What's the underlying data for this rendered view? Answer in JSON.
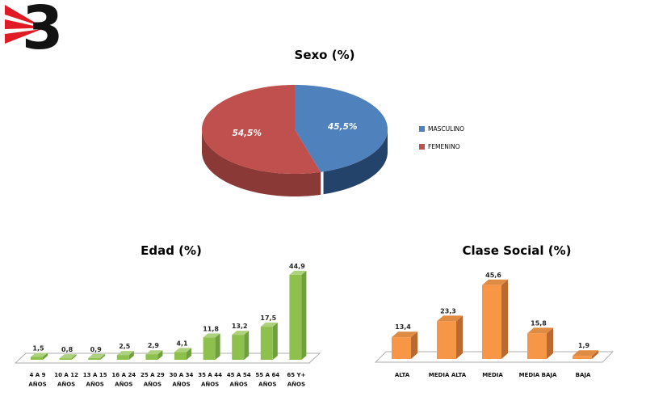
{
  "page": {
    "background": "#FFFFFF"
  },
  "logo": {
    "name": "TV3",
    "symbol_text": "3",
    "stripe_color": "#E01B26",
    "symbol_color": "#121212"
  },
  "number_format": {
    "decimal_separator": ","
  },
  "chart_data": [
    {
      "id": "sexo",
      "type": "pie",
      "effect": "3d",
      "title": "Sexo (%)",
      "labels": [
        "MASCULINO",
        "FEMENINO"
      ],
      "values": [
        45.5,
        54.5
      ],
      "data_labels": [
        "45,5%",
        "54,5%"
      ],
      "colors": [
        "#4F81BD",
        "#C0504D"
      ],
      "side_colors": [
        "#24436B",
        "#8A3936"
      ],
      "data_label_color": "#FFFFFF",
      "legend_position": "right"
    },
    {
      "id": "edad",
      "type": "bar",
      "effect": "3d",
      "title": "Edad (%)",
      "categories": [
        "4 A 9\nAÑOS",
        "10 A 12\nAÑOS",
        "13 A 15\nAÑOS",
        "16 A 24\nAÑOS",
        "25 A 29\nAÑOS",
        "30 A 34\nAÑOS",
        "35 A 44\nAÑOS",
        "45 A 54\nAÑOS",
        "55 A 64\nAÑOS",
        "65 Y+\nAÑOS"
      ],
      "values": [
        1.5,
        0.8,
        0.9,
        2.5,
        2.9,
        4.1,
        11.8,
        13.2,
        17.5,
        44.9
      ],
      "data_labels": [
        "1,5",
        "0,8",
        "0,9",
        "2,5",
        "2,9",
        "4,1",
        "11,8",
        "13,2",
        "17,5",
        "44,9"
      ],
      "bar_colors": {
        "front": "#8EC04E",
        "top": "#AED17D",
        "side": "#6FA03C"
      },
      "value_label_color": "#262626",
      "category_label_color": "#111111",
      "axis_color": "#ABABAB",
      "ylim": [
        0,
        50
      ],
      "grid": false
    },
    {
      "id": "clase",
      "type": "bar",
      "effect": "3d",
      "title": "Clase Social (%)",
      "categories": [
        "ALTA",
        "MEDIA ALTA",
        "MEDIA",
        "MEDIA BAJA",
        "BAJA"
      ],
      "values": [
        13.4,
        23.3,
        45.6,
        15.8,
        1.9
      ],
      "data_labels": [
        "13,4",
        "23,3",
        "45,6",
        "15,8",
        "1,9"
      ],
      "bar_colors": {
        "front": "#F79646",
        "top": "#E08B44",
        "side": "#BA6931"
      },
      "value_label_color": "#262626",
      "category_label_color": "#111111",
      "axis_color": "#ABABAB",
      "ylim": [
        0,
        50
      ],
      "grid": false
    }
  ]
}
